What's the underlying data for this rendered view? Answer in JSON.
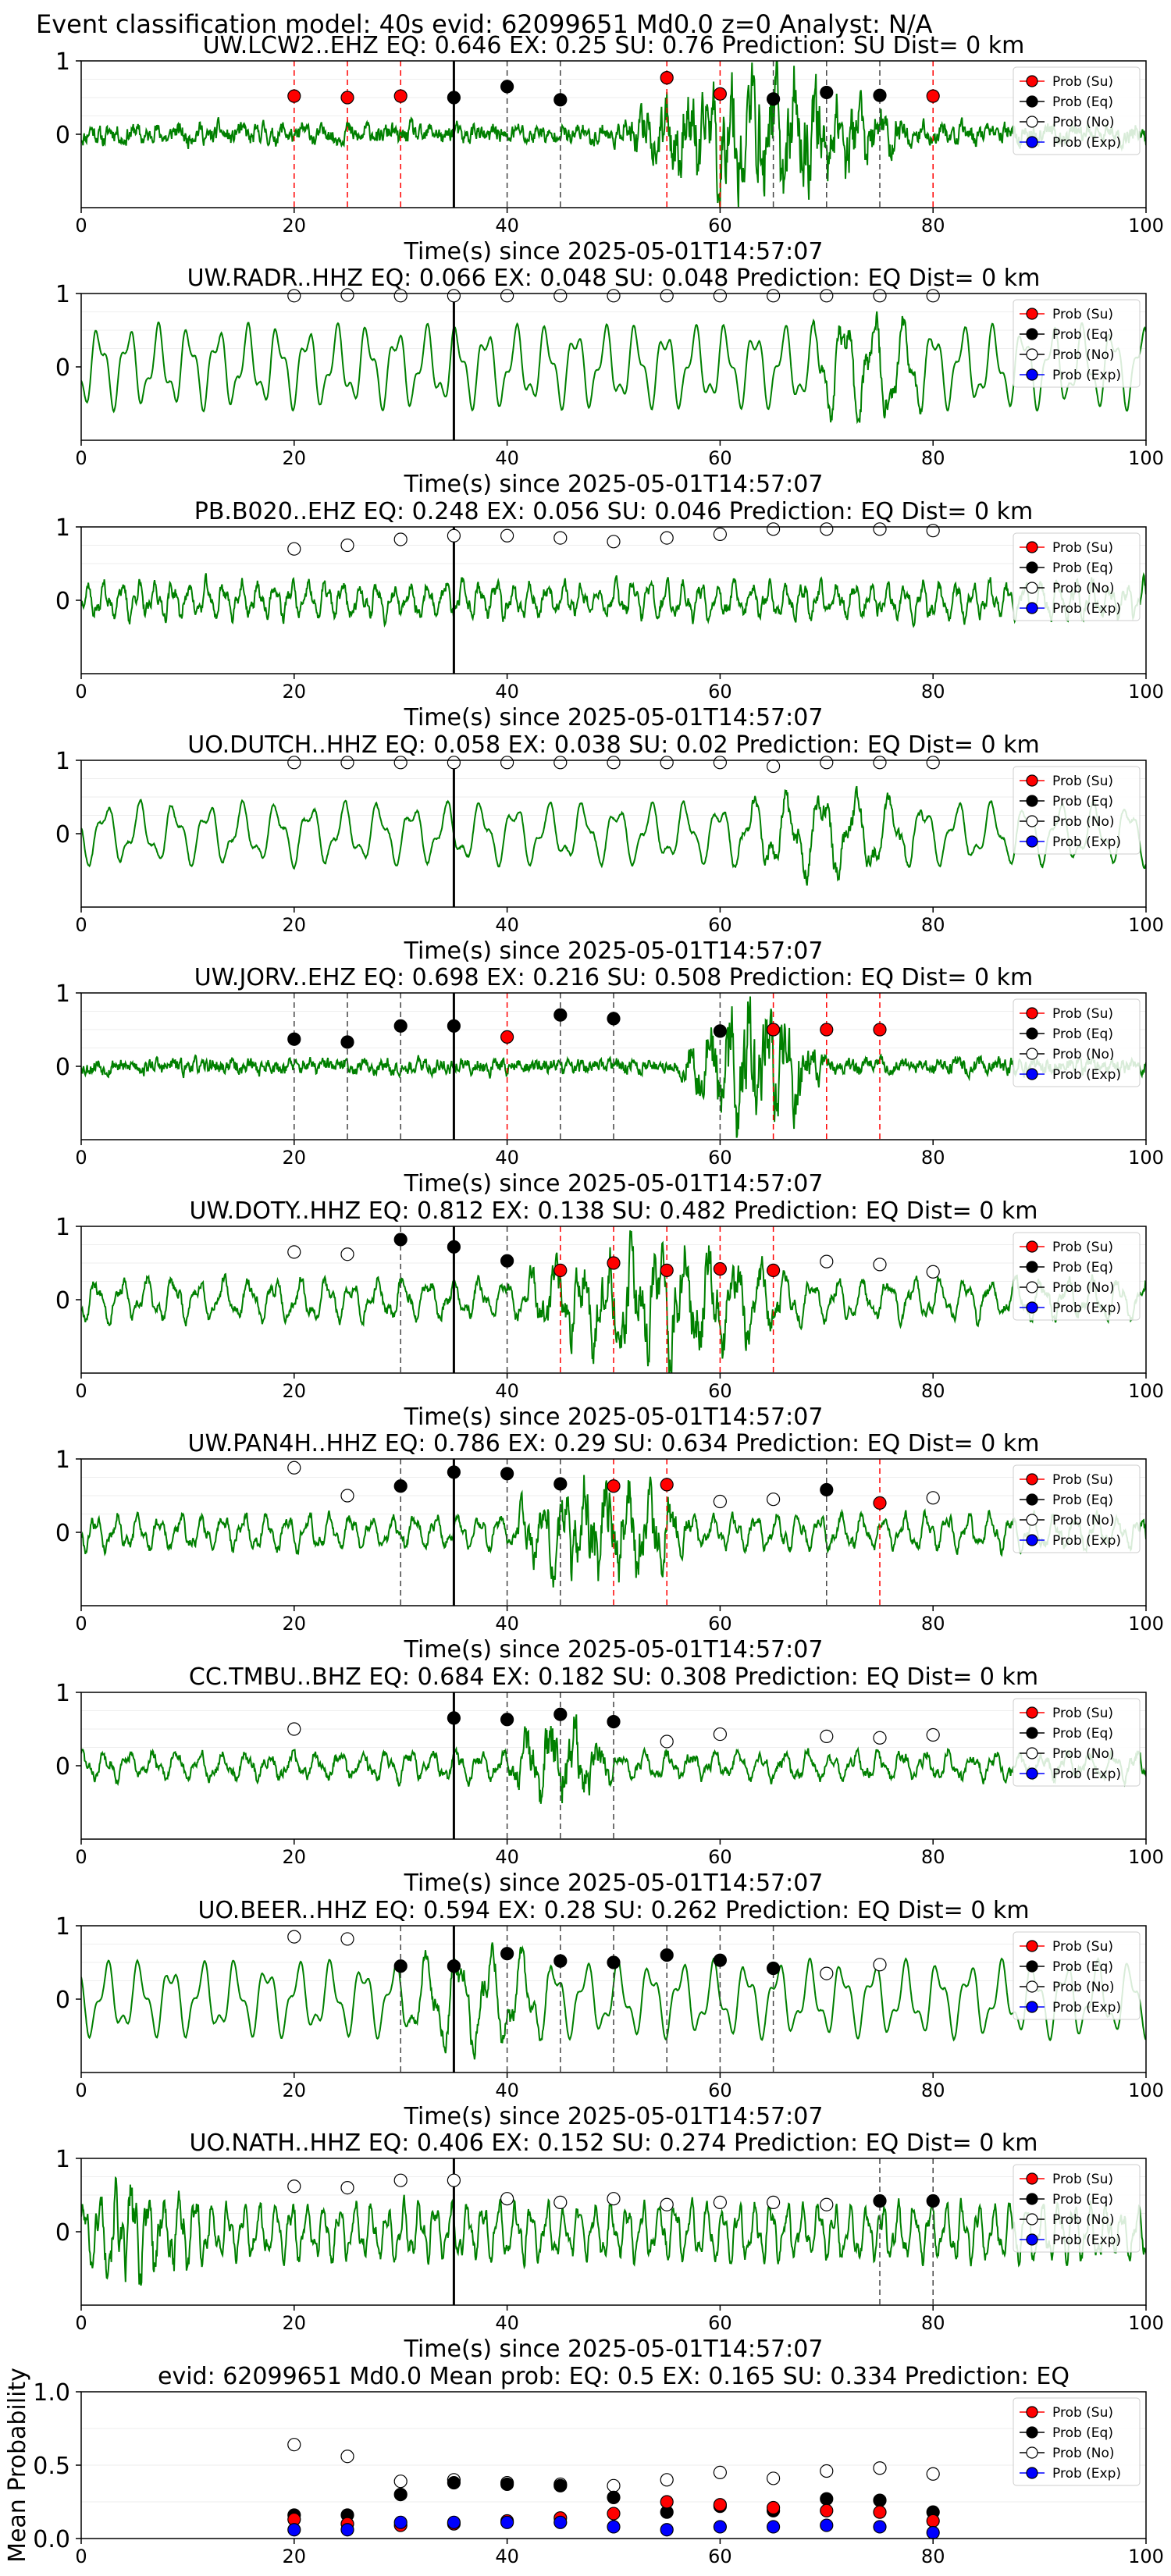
{
  "page_title": "Event classification model: 40s evid: 62099651 Md0.0 z=0 Analyst: N/A",
  "legend_labels": [
    "Prob (Su)",
    "Prob (Eq)",
    "Prob (No)",
    "Prob (Exp)"
  ],
  "colors": {
    "su": "#ff0000",
    "eq": "#000000",
    "no": "#ffffff",
    "exp": "#0000ff",
    "trace": "#008000"
  },
  "chart_data": [
    {
      "type": "line",
      "station": "UW.LCW2..EHZ",
      "title": "UW.LCW2..EHZ   EQ: 0.646   EX: 0.25   SU: 0.76   Prediction: SU    Dist= 0 km",
      "xlabel": "Time(s) since 2025-05-01T14:57:07",
      "xlim": [
        0,
        100
      ],
      "ylim": [
        -1,
        1
      ],
      "xticks": [
        "0",
        "20",
        "40",
        "60",
        "80",
        "100"
      ],
      "yticks": [
        "0",
        "1"
      ],
      "amp": 0.08,
      "noise": 0.6,
      "period": 2.0,
      "burst": [
        50,
        78,
        0.9
      ],
      "pick": 35,
      "seed": 11,
      "points": [
        {
          "x": 20,
          "y": 0.52,
          "c": "su"
        },
        {
          "x": 25,
          "y": 0.5,
          "c": "su"
        },
        {
          "x": 30,
          "y": 0.52,
          "c": "su"
        },
        {
          "x": 35,
          "y": 0.5,
          "c": "eq"
        },
        {
          "x": 40,
          "y": 0.65,
          "c": "eq"
        },
        {
          "x": 45,
          "y": 0.47,
          "c": "eq"
        },
        {
          "x": 55,
          "y": 0.77,
          "c": "su"
        },
        {
          "x": 60,
          "y": 0.55,
          "c": "su"
        },
        {
          "x": 65,
          "y": 0.48,
          "c": "eq"
        },
        {
          "x": 70,
          "y": 0.57,
          "c": "eq"
        },
        {
          "x": 75,
          "y": 0.53,
          "c": "eq"
        },
        {
          "x": 80,
          "y": 0.52,
          "c": "su"
        }
      ]
    },
    {
      "type": "line",
      "station": "UW.RADR..HHZ",
      "title": "UW.RADR..HHZ   EQ: 0.066   EX: 0.048   SU: 0.048   Prediction: EQ    Dist= 0 km",
      "xlabel": "Time(s) since 2025-05-01T14:57:07",
      "xlim": [
        0,
        100
      ],
      "ylim": [
        -1,
        1
      ],
      "xticks": [
        "0",
        "20",
        "40",
        "60",
        "80",
        "100"
      ],
      "yticks": [
        "0",
        "1"
      ],
      "amp": 0.6,
      "noise": 0.05,
      "period": 2.8,
      "burst": [
        68,
        80,
        0.35
      ],
      "pick": 35,
      "seed": 23,
      "points": [
        {
          "x": 20,
          "y": 0.97,
          "c": "no"
        },
        {
          "x": 25,
          "y": 0.98,
          "c": "no"
        },
        {
          "x": 30,
          "y": 0.97,
          "c": "no"
        },
        {
          "x": 35,
          "y": 0.97,
          "c": "no"
        },
        {
          "x": 40,
          "y": 0.97,
          "c": "no"
        },
        {
          "x": 45,
          "y": 0.97,
          "c": "no"
        },
        {
          "x": 50,
          "y": 0.97,
          "c": "no"
        },
        {
          "x": 55,
          "y": 0.97,
          "c": "no"
        },
        {
          "x": 60,
          "y": 0.97,
          "c": "no"
        },
        {
          "x": 65,
          "y": 0.97,
          "c": "no"
        },
        {
          "x": 70,
          "y": 0.97,
          "c": "no"
        },
        {
          "x": 75,
          "y": 0.97,
          "c": "no"
        },
        {
          "x": 80,
          "y": 0.97,
          "c": "no"
        }
      ]
    },
    {
      "type": "line",
      "station": "PB.B020..EHZ",
      "title": "PB.B020..EHZ   EQ: 0.248   EX: 0.056   SU: 0.046   Prediction: EQ    Dist= 0 km",
      "xlabel": "Time(s) since 2025-05-01T14:57:07",
      "xlim": [
        0,
        100
      ],
      "ylim": [
        -1,
        1
      ],
      "xticks": [
        "0",
        "20",
        "40",
        "60",
        "80",
        "100"
      ],
      "yticks": [
        "0",
        "1"
      ],
      "amp": 0.25,
      "noise": 0.45,
      "period": 1.6,
      "burst": [
        0,
        0,
        0
      ],
      "pick": 35,
      "seed": 37,
      "points": [
        {
          "x": 20,
          "y": 0.7,
          "c": "no"
        },
        {
          "x": 25,
          "y": 0.75,
          "c": "no"
        },
        {
          "x": 30,
          "y": 0.83,
          "c": "no"
        },
        {
          "x": 35,
          "y": 0.88,
          "c": "no"
        },
        {
          "x": 40,
          "y": 0.88,
          "c": "no"
        },
        {
          "x": 45,
          "y": 0.85,
          "c": "no"
        },
        {
          "x": 50,
          "y": 0.8,
          "c": "no"
        },
        {
          "x": 55,
          "y": 0.85,
          "c": "no"
        },
        {
          "x": 60,
          "y": 0.9,
          "c": "no"
        },
        {
          "x": 65,
          "y": 0.97,
          "c": "no"
        },
        {
          "x": 70,
          "y": 0.97,
          "c": "no"
        },
        {
          "x": 75,
          "y": 0.97,
          "c": "no"
        },
        {
          "x": 80,
          "y": 0.95,
          "c": "no"
        }
      ]
    },
    {
      "type": "line",
      "station": "UO.DUTCH..HHZ",
      "title": "UO.DUTCH..HHZ   EQ: 0.058   EX: 0.038   SU: 0.02   Prediction: EQ    Dist= 0 km",
      "xlabel": "Time(s) since 2025-05-01T14:57:07",
      "xlim": [
        0,
        100
      ],
      "ylim": [
        -1,
        1
      ],
      "xticks": [
        "0",
        "20",
        "40",
        "60",
        "80",
        "100"
      ],
      "yticks": [
        "0",
        "1"
      ],
      "amp": 0.45,
      "noise": 0.1,
      "period": 3.2,
      "burst": [
        60,
        80,
        0.25
      ],
      "pick": 35,
      "seed": 41,
      "points": [
        {
          "x": 20,
          "y": 0.97,
          "c": "no"
        },
        {
          "x": 25,
          "y": 0.97,
          "c": "no"
        },
        {
          "x": 30,
          "y": 0.97,
          "c": "no"
        },
        {
          "x": 35,
          "y": 0.97,
          "c": "no"
        },
        {
          "x": 40,
          "y": 0.97,
          "c": "no"
        },
        {
          "x": 45,
          "y": 0.97,
          "c": "no"
        },
        {
          "x": 50,
          "y": 0.97,
          "c": "no"
        },
        {
          "x": 55,
          "y": 0.97,
          "c": "no"
        },
        {
          "x": 60,
          "y": 0.97,
          "c": "no"
        },
        {
          "x": 65,
          "y": 0.92,
          "c": "no"
        },
        {
          "x": 70,
          "y": 0.97,
          "c": "no"
        },
        {
          "x": 75,
          "y": 0.97,
          "c": "no"
        },
        {
          "x": 80,
          "y": 0.97,
          "c": "no"
        }
      ]
    },
    {
      "type": "line",
      "station": "UW.JORV..EHZ",
      "title": "UW.JORV..EHZ   EQ: 0.698   EX: 0.216   SU: 0.508   Prediction: EQ    Dist= 0 km",
      "xlabel": "Time(s) since 2025-05-01T14:57:07",
      "xlim": [
        0,
        100
      ],
      "ylim": [
        -1,
        1
      ],
      "xticks": [
        "0",
        "20",
        "40",
        "60",
        "80",
        "100"
      ],
      "yticks": [
        "0",
        "1"
      ],
      "amp": 0.04,
      "noise": 0.5,
      "period": 1.8,
      "burst": [
        56,
        70,
        1.0
      ],
      "pick": 35,
      "seed": 53,
      "points": [
        {
          "x": 20,
          "y": 0.37,
          "c": "eq"
        },
        {
          "x": 25,
          "y": 0.33,
          "c": "eq"
        },
        {
          "x": 30,
          "y": 0.55,
          "c": "eq"
        },
        {
          "x": 35,
          "y": 0.55,
          "c": "eq"
        },
        {
          "x": 40,
          "y": 0.4,
          "c": "su"
        },
        {
          "x": 45,
          "y": 0.7,
          "c": "eq"
        },
        {
          "x": 50,
          "y": 0.65,
          "c": "eq"
        },
        {
          "x": 60,
          "y": 0.48,
          "c": "eq"
        },
        {
          "x": 65,
          "y": 0.5,
          "c": "su"
        },
        {
          "x": 70,
          "y": 0.5,
          "c": "su"
        },
        {
          "x": 75,
          "y": 0.5,
          "c": "su"
        }
      ]
    },
    {
      "type": "line",
      "station": "UW.DOTY..HHZ",
      "title": "UW.DOTY..HHZ   EQ: 0.812   EX: 0.138   SU: 0.482   Prediction: EQ    Dist= 0 km",
      "xlabel": "Time(s) since 2025-05-01T14:57:07",
      "xlim": [
        0,
        100
      ],
      "ylim": [
        -1,
        1
      ],
      "xticks": [
        "0",
        "20",
        "40",
        "60",
        "80",
        "100"
      ],
      "yticks": [
        "0",
        "1"
      ],
      "amp": 0.3,
      "noise": 0.35,
      "period": 2.4,
      "burst": [
        40,
        68,
        0.6
      ],
      "pick": 35,
      "seed": 67,
      "points": [
        {
          "x": 20,
          "y": 0.65,
          "c": "no"
        },
        {
          "x": 25,
          "y": 0.62,
          "c": "no"
        },
        {
          "x": 30,
          "y": 0.82,
          "c": "eq"
        },
        {
          "x": 35,
          "y": 0.72,
          "c": "eq"
        },
        {
          "x": 40,
          "y": 0.53,
          "c": "eq"
        },
        {
          "x": 45,
          "y": 0.4,
          "c": "su"
        },
        {
          "x": 50,
          "y": 0.5,
          "c": "su"
        },
        {
          "x": 55,
          "y": 0.4,
          "c": "su"
        },
        {
          "x": 60,
          "y": 0.42,
          "c": "su"
        },
        {
          "x": 65,
          "y": 0.4,
          "c": "su"
        },
        {
          "x": 70,
          "y": 0.52,
          "c": "no"
        },
        {
          "x": 75,
          "y": 0.48,
          "c": "no"
        },
        {
          "x": 80,
          "y": 0.38,
          "c": "no"
        }
      ]
    },
    {
      "type": "line",
      "station": "UW.PAN4H..HHZ",
      "title": "UW.PAN4H..HHZ   EQ: 0.786   EX: 0.29   SU: 0.634   Prediction: EQ    Dist= 0 km",
      "xlabel": "Time(s) since 2025-05-01T14:57:07",
      "xlim": [
        0,
        100
      ],
      "ylim": [
        -1,
        1
      ],
      "xticks": [
        "0",
        "20",
        "40",
        "60",
        "80",
        "100"
      ],
      "yticks": [
        "0",
        "1"
      ],
      "amp": 0.25,
      "noise": 0.35,
      "period": 2.0,
      "burst": [
        40,
        58,
        0.65
      ],
      "pick": 35,
      "seed": 79,
      "points": [
        {
          "x": 20,
          "y": 0.88,
          "c": "no"
        },
        {
          "x": 25,
          "y": 0.5,
          "c": "no"
        },
        {
          "x": 30,
          "y": 0.63,
          "c": "eq"
        },
        {
          "x": 35,
          "y": 0.82,
          "c": "eq"
        },
        {
          "x": 40,
          "y": 0.8,
          "c": "eq"
        },
        {
          "x": 45,
          "y": 0.66,
          "c": "eq"
        },
        {
          "x": 50,
          "y": 0.63,
          "c": "su"
        },
        {
          "x": 55,
          "y": 0.65,
          "c": "su"
        },
        {
          "x": 60,
          "y": 0.42,
          "c": "no"
        },
        {
          "x": 65,
          "y": 0.45,
          "c": "no"
        },
        {
          "x": 70,
          "y": 0.58,
          "c": "eq"
        },
        {
          "x": 75,
          "y": 0.4,
          "c": "su"
        },
        {
          "x": 80,
          "y": 0.47,
          "c": "no"
        }
      ]
    },
    {
      "type": "line",
      "station": "CC.TMBU..BHZ",
      "title": "CC.TMBU..BHZ   EQ: 0.684   EX: 0.182   SU: 0.308   Prediction: EQ    Dist= 0 km",
      "xlabel": "Time(s) since 2025-05-01T14:57:07",
      "xlim": [
        0,
        100
      ],
      "ylim": [
        -1,
        1
      ],
      "xticks": [
        "0",
        "20",
        "40",
        "60",
        "80",
        "100"
      ],
      "yticks": [
        "0",
        "1"
      ],
      "amp": 0.2,
      "noise": 0.35,
      "period": 2.2,
      "burst": [
        40,
        50,
        0.55
      ],
      "pick": 35,
      "seed": 83,
      "points": [
        {
          "x": 20,
          "y": 0.5,
          "c": "no"
        },
        {
          "x": 35,
          "y": 0.65,
          "c": "eq"
        },
        {
          "x": 40,
          "y": 0.63,
          "c": "eq"
        },
        {
          "x": 45,
          "y": 0.7,
          "c": "eq"
        },
        {
          "x": 50,
          "y": 0.6,
          "c": "eq"
        },
        {
          "x": 55,
          "y": 0.33,
          "c": "no"
        },
        {
          "x": 60,
          "y": 0.43,
          "c": "no"
        },
        {
          "x": 70,
          "y": 0.4,
          "c": "no"
        },
        {
          "x": 75,
          "y": 0.38,
          "c": "no"
        },
        {
          "x": 80,
          "y": 0.42,
          "c": "no"
        }
      ]
    },
    {
      "type": "line",
      "station": "UO.BEER..HHZ",
      "title": "UO.BEER..HHZ   EQ: 0.594   EX: 0.28   SU: 0.262   Prediction: EQ    Dist= 0 km",
      "xlabel": "Time(s) since 2025-05-01T14:57:07",
      "xlim": [
        0,
        100
      ],
      "ylim": [
        -1,
        1
      ],
      "xticks": [
        "0",
        "20",
        "40",
        "60",
        "80",
        "100"
      ],
      "yticks": [
        "0",
        "1"
      ],
      "amp": 0.55,
      "noise": 0.05,
      "period": 3.0,
      "burst": [
        30,
        45,
        0.3
      ],
      "pick": 35,
      "seed": 97,
      "points": [
        {
          "x": 20,
          "y": 0.85,
          "c": "no"
        },
        {
          "x": 25,
          "y": 0.82,
          "c": "no"
        },
        {
          "x": 30,
          "y": 0.45,
          "c": "eq"
        },
        {
          "x": 35,
          "y": 0.45,
          "c": "eq"
        },
        {
          "x": 40,
          "y": 0.62,
          "c": "eq"
        },
        {
          "x": 45,
          "y": 0.52,
          "c": "eq"
        },
        {
          "x": 50,
          "y": 0.5,
          "c": "eq"
        },
        {
          "x": 55,
          "y": 0.6,
          "c": "eq"
        },
        {
          "x": 60,
          "y": 0.53,
          "c": "eq"
        },
        {
          "x": 65,
          "y": 0.42,
          "c": "eq"
        },
        {
          "x": 70,
          "y": 0.35,
          "c": "no"
        },
        {
          "x": 75,
          "y": 0.47,
          "c": "no"
        }
      ]
    },
    {
      "type": "line",
      "station": "UO.NATH..HHZ",
      "title": "UO.NATH..HHZ   EQ: 0.406   EX: 0.152   SU: 0.274   Prediction: EQ    Dist= 0 km",
      "xlabel": "Time(s) since 2025-05-01T14:57:07",
      "xlim": [
        0,
        100
      ],
      "ylim": [
        -1,
        1
      ],
      "xticks": [
        "0",
        "20",
        "40",
        "60",
        "80",
        "100"
      ],
      "yticks": [
        "0",
        "1"
      ],
      "amp": 0.4,
      "noise": 0.5,
      "period": 1.5,
      "burst": [
        0,
        12,
        0.4
      ],
      "pick": 35,
      "seed": 101,
      "points": [
        {
          "x": 20,
          "y": 0.62,
          "c": "no"
        },
        {
          "x": 25,
          "y": 0.6,
          "c": "no"
        },
        {
          "x": 30,
          "y": 0.7,
          "c": "no"
        },
        {
          "x": 35,
          "y": 0.7,
          "c": "no"
        },
        {
          "x": 40,
          "y": 0.45,
          "c": "no"
        },
        {
          "x": 45,
          "y": 0.4,
          "c": "no"
        },
        {
          "x": 50,
          "y": 0.45,
          "c": "no"
        },
        {
          "x": 55,
          "y": 0.37,
          "c": "no"
        },
        {
          "x": 60,
          "y": 0.4,
          "c": "no"
        },
        {
          "x": 65,
          "y": 0.4,
          "c": "no"
        },
        {
          "x": 70,
          "y": 0.37,
          "c": "no"
        },
        {
          "x": 75,
          "y": 0.42,
          "c": "eq"
        },
        {
          "x": 80,
          "y": 0.42,
          "c": "eq"
        }
      ]
    },
    {
      "type": "scatter",
      "station": "mean",
      "title": "evid: 62099651   Md0.0   Mean prob:   EQ: 0.5   EX: 0.165   SU: 0.334   Prediction: EQ",
      "xlabel": "",
      "ylabel": "Mean Probability",
      "xlim": [
        0,
        100
      ],
      "ylim": [
        0,
        1
      ],
      "xticks": [
        "0",
        "20",
        "40",
        "60",
        "80",
        "100"
      ],
      "yticks": [
        "0.0",
        "0.5",
        "1.0"
      ],
      "x": [
        20,
        25,
        30,
        35,
        40,
        45,
        50,
        55,
        60,
        65,
        70,
        75,
        80
      ],
      "series": [
        {
          "name": "Prob (No)",
          "key": "no",
          "values": [
            0.64,
            0.56,
            0.39,
            0.4,
            0.38,
            0.37,
            0.36,
            0.4,
            0.45,
            0.41,
            0.46,
            0.48,
            0.44
          ]
        },
        {
          "name": "Prob (Eq)",
          "key": "eq",
          "values": [
            0.16,
            0.16,
            0.3,
            0.38,
            0.37,
            0.36,
            0.28,
            0.18,
            0.22,
            0.19,
            0.27,
            0.26,
            0.18
          ]
        },
        {
          "name": "Prob (Su)",
          "key": "su",
          "values": [
            0.13,
            0.1,
            0.09,
            0.1,
            0.12,
            0.14,
            0.17,
            0.25,
            0.23,
            0.21,
            0.19,
            0.18,
            0.12
          ]
        },
        {
          "name": "Prob (Exp)",
          "key": "exp",
          "values": [
            0.06,
            0.06,
            0.11,
            0.11,
            0.11,
            0.11,
            0.08,
            0.06,
            0.08,
            0.08,
            0.09,
            0.08,
            0.04
          ]
        }
      ]
    }
  ]
}
